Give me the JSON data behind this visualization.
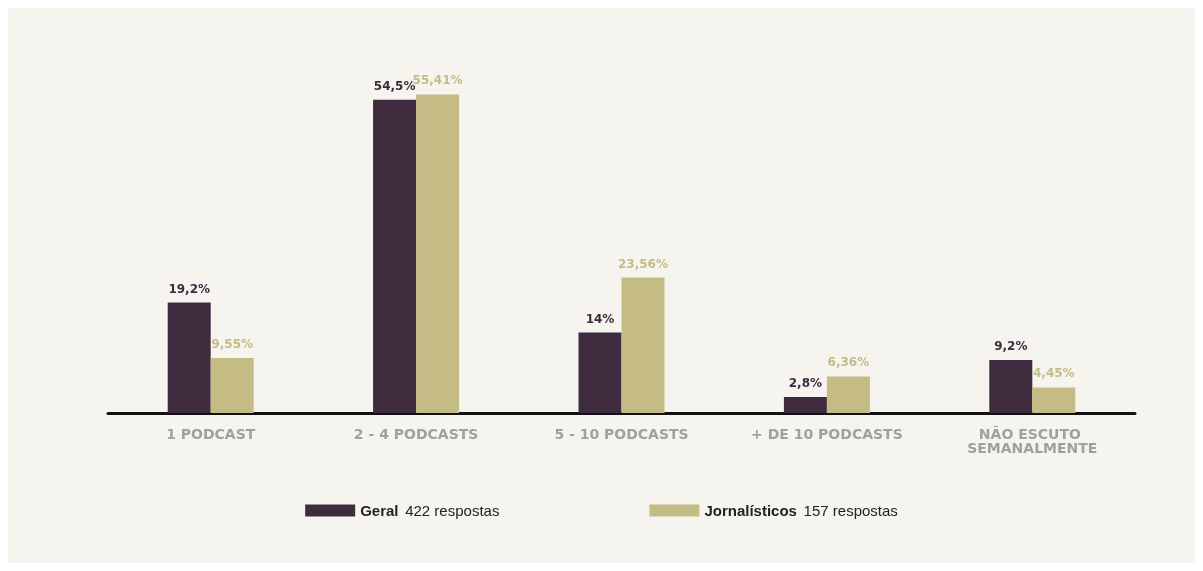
{
  "chart_data": {
    "type": "bar",
    "categories": [
      "1 PODCAST",
      "2 - 4 PODCASTS",
      "5 - 10 PODCASTS",
      "+ DE 10 PODCASTS",
      "NÃO ESCUTO SEMANALMENTE"
    ],
    "series": [
      {
        "name": "Geral 422 respostas",
        "color": "#3f2b3e",
        "values": [
          19.2,
          54.5,
          14,
          2.8,
          9.2
        ],
        "value_labels": [
          "19,2%",
          "54,5%",
          "14%",
          "2,8%",
          "9,2%"
        ]
      },
      {
        "name": "Jornalísticos 157 respostas",
        "color": "#c4bb85",
        "values": [
          9.55,
          55.41,
          23.56,
          6.36,
          4.45
        ],
        "value_labels": [
          "9,55%",
          "55,41%",
          "23,56%",
          "6,36%",
          "4,45%"
        ]
      }
    ],
    "legend": "bottom",
    "tick_labels": "x"
  }
}
